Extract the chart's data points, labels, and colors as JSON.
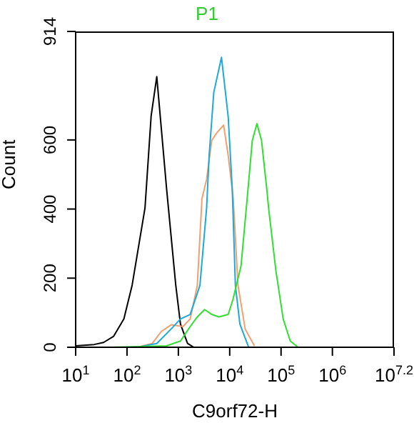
{
  "chart_data": {
    "type": "line",
    "title": "P1",
    "xlabel": "C9orf72-H",
    "ylabel": "Count",
    "log": "x",
    "xlim": [
      10,
      15848932
    ],
    "xticks": [
      {
        "value": 10,
        "label": "10$^{1}$"
      },
      {
        "value": 100,
        "label": "10$^{2}$"
      },
      {
        "value": 1000,
        "label": "10$^{3}$"
      },
      {
        "value": 10000,
        "label": "10$^{4}$"
      },
      {
        "value": 100000,
        "label": "10$^{5}$"
      },
      {
        "value": 1000000,
        "label": "10$^{6}$"
      },
      {
        "value": 15848932,
        "label": "10$^{7.2}$"
      }
    ],
    "ylim": [
      0,
      914
    ],
    "yticks": [
      0,
      200,
      400,
      600,
      914
    ],
    "grid": false,
    "legend": false,
    "marker": "none",
    "line_style": "solid",
    "series": [
      {
        "color": "#000000",
        "x": [
          10,
          23,
          35,
          55,
          87,
          126,
          224,
          295,
          380,
          589,
          891,
          1100,
          1510,
          2000
        ],
        "values": [
          4,
          8,
          14,
          32,
          82,
          180,
          403,
          669,
          783,
          460,
          179,
          67,
          11,
          0
        ]
      },
      {
        "color": "#f0a070",
        "x": [
          158,
          309,
          468,
          724,
          1230,
          1700,
          2340,
          2880,
          3550,
          4470,
          5500,
          7590,
          9330,
          11700,
          14500,
          20000,
          30200
        ],
        "values": [
          0,
          11,
          46,
          65,
          60,
          82,
          179,
          430,
          486,
          598,
          619,
          643,
          556,
          431,
          179,
          53,
          4
        ]
      },
      {
        "color": "#1fa8d8",
        "x": [
          158,
          380,
          724,
          1100,
          1700,
          2630,
          3550,
          3980,
          4900,
          6920,
          9330,
          11200,
          12900,
          15800,
          21900,
          23400
        ],
        "values": [
          0,
          11,
          53,
          82,
          95,
          179,
          403,
          556,
          738,
          839,
          668,
          460,
          179,
          67,
          11,
          0
        ]
      },
      {
        "color": "#33dd33",
        "x": [
          54,
          589,
          1100,
          1700,
          2340,
          3240,
          4470,
          6170,
          9330,
          11500,
          16600,
          21900,
          27500,
          33900,
          41700,
          52500,
          57500,
          79400,
          110000,
          151000,
          214000
        ],
        "values": [
          0,
          4,
          18,
          60,
          88,
          109,
          95,
          88,
          95,
          137,
          235,
          431,
          598,
          647,
          598,
          460,
          400,
          221,
          82,
          18,
          0
        ]
      }
    ]
  }
}
